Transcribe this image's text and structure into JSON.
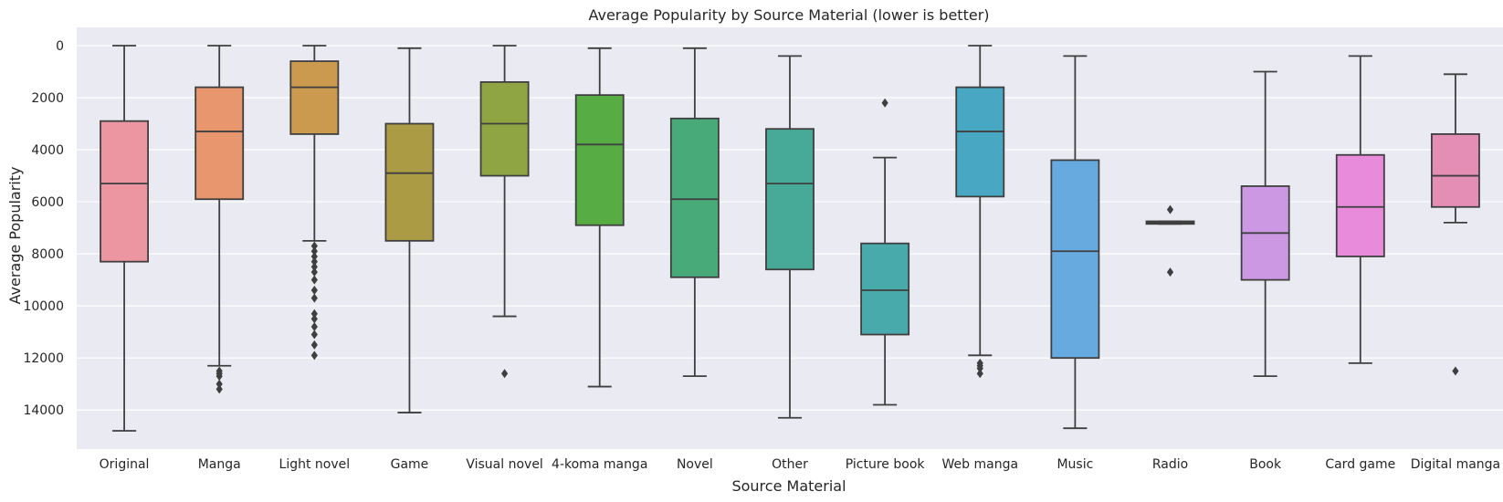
{
  "chart_data": {
    "type": "box",
    "title": "Average Popularity by Source Material (lower is better)",
    "xlabel": "Source Material",
    "ylabel": "Average Popularity",
    "y_inverted": true,
    "ylim": [
      15500,
      -700
    ],
    "yticks": [
      0,
      2000,
      4000,
      6000,
      8000,
      10000,
      12000,
      14000
    ],
    "grid": true,
    "background": "#eaeaf2",
    "line_color": "#3f3f3f",
    "categories": [
      {
        "name": "Original",
        "color": "#ec96a2",
        "min": 0,
        "q1": 2900,
        "median": 5300,
        "q3": 8300,
        "max": 14800,
        "outliers": []
      },
      {
        "name": "Manga",
        "color": "#e8966e",
        "min": 0,
        "q1": 1600,
        "median": 3300,
        "q3": 5900,
        "max": 12300,
        "outliers": [
          12500,
          12600,
          12700,
          13000,
          13200
        ]
      },
      {
        "name": "Light novel",
        "color": "#cb9a4f",
        "min": 0,
        "q1": 600,
        "median": 1600,
        "q3": 3400,
        "max": 7500,
        "outliers": [
          7700,
          7900,
          8100,
          8300,
          8500,
          8700,
          9000,
          9400,
          9700,
          10300,
          10500,
          10800,
          11100,
          11500,
          11900
        ]
      },
      {
        "name": "Game",
        "color": "#ab9b45",
        "min": 100,
        "q1": 3000,
        "median": 4900,
        "q3": 7500,
        "max": 14100,
        "outliers": []
      },
      {
        "name": "Visual novel",
        "color": "#8fa544",
        "min": 0,
        "q1": 1400,
        "median": 3000,
        "q3": 5000,
        "max": 10400,
        "outliers": [
          12600
        ]
      },
      {
        "name": "4-koma manga",
        "color": "#58ac44",
        "min": 100,
        "q1": 1900,
        "median": 3800,
        "q3": 6900,
        "max": 13100,
        "outliers": []
      },
      {
        "name": "Novel",
        "color": "#48aa78",
        "min": 100,
        "q1": 2800,
        "median": 5900,
        "q3": 8900,
        "max": 12700,
        "outliers": []
      },
      {
        "name": "Other",
        "color": "#47aa98",
        "min": 400,
        "q1": 3200,
        "median": 5300,
        "q3": 8600,
        "max": 14300,
        "outliers": []
      },
      {
        "name": "Picture book",
        "color": "#49aaab",
        "min": 4300,
        "q1": 7600,
        "median": 9400,
        "q3": 11100,
        "max": 13800,
        "outliers": [
          2200
        ]
      },
      {
        "name": "Web manga",
        "color": "#48a7c2",
        "min": 0,
        "q1": 1600,
        "median": 3300,
        "q3": 5800,
        "max": 11900,
        "outliers": [
          12200,
          12300,
          12400,
          12600
        ]
      },
      {
        "name": "Music",
        "color": "#67aae0",
        "min": 400,
        "q1": 4400,
        "median": 7900,
        "q3": 12000,
        "max": 14700,
        "outliers": []
      },
      {
        "name": "Radio",
        "color": "#9a9ee8",
        "min": 6750,
        "q1": 6750,
        "median": 6800,
        "q3": 6850,
        "max": 6850,
        "outliers": [
          6300,
          8700
        ]
      },
      {
        "name": "Book",
        "color": "#cc98e4",
        "min": 1000,
        "q1": 5400,
        "median": 7200,
        "q3": 9000,
        "max": 12700,
        "outliers": []
      },
      {
        "name": "Card game",
        "color": "#e98bdb",
        "min": 400,
        "q1": 4200,
        "median": 6200,
        "q3": 8100,
        "max": 12200,
        "outliers": []
      },
      {
        "name": "Digital manga",
        "color": "#e48db5",
        "min": 1100,
        "q1": 3400,
        "median": 5000,
        "q3": 6200,
        "max": 6800,
        "outliers": [
          12500
        ]
      }
    ]
  }
}
